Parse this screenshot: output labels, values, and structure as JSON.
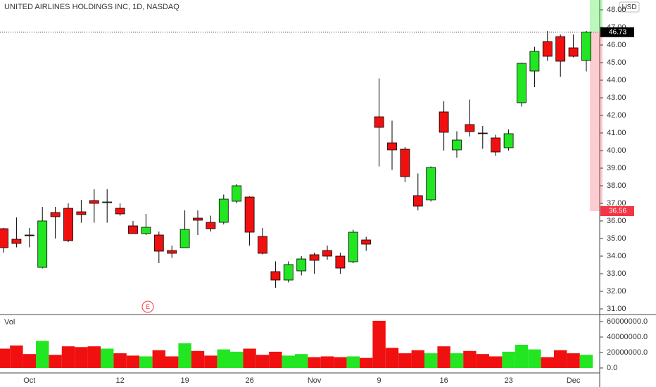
{
  "chart_data": [
    {
      "type": "candlestick",
      "title": "UNITED AIRLINES HOLDINGS INC, 1D, NASDAQ",
      "currency": "USD",
      "earnings": "E",
      "categories": [
        null,
        null,
        "Oct",
        null,
        null,
        null,
        null,
        null,
        null,
        "12",
        null,
        null,
        null,
        null,
        "19",
        null,
        null,
        null,
        null,
        "26",
        null,
        null,
        null,
        null,
        "Nov",
        null,
        null,
        null,
        null,
        "9",
        null,
        null,
        null,
        null,
        "16",
        null,
        null,
        null,
        null,
        "23",
        null,
        null,
        null,
        null,
        "Dec",
        null
      ],
      "open": [
        35.56,
        34.96,
        35.2,
        33.36,
        36.48,
        36.72,
        36.52,
        37.16,
        37.04,
        36.72,
        35.72,
        35.28,
        35.2,
        34.32,
        34.48,
        36.16,
        35.92,
        35.92,
        37.12,
        37.36,
        35.12,
        33.12,
        32.64,
        33.16,
        34.08,
        34.32,
        34.0,
        33.68,
        34.92,
        41.92,
        40.44,
        40.08,
        37.44,
        37.2,
        42.2,
        40.04,
        41.48,
        41.0,
        40.72,
        40.16,
        42.72,
        44.52,
        46.2,
        46.48,
        45.84,
        45.12
      ],
      "high": [
        35.6,
        36.2,
        35.6,
        36.8,
        36.8,
        37.0,
        37.2,
        37.8,
        37.8,
        37.0,
        36.0,
        36.4,
        35.4,
        34.6,
        36.6,
        36.6,
        36.3,
        37.5,
        38.1,
        37.4,
        35.6,
        33.7,
        33.7,
        34.0,
        34.2,
        34.6,
        34.2,
        35.5,
        35.1,
        44.1,
        41.7,
        40.2,
        38.7,
        39.1,
        42.8,
        41.1,
        42.9,
        41.4,
        40.9,
        41.2,
        45.0,
        45.9,
        46.8,
        46.6,
        46.6,
        46.8
      ],
      "low": [
        34.2,
        34.5,
        34.5,
        33.3,
        35.0,
        34.8,
        35.9,
        35.9,
        35.9,
        36.3,
        35.3,
        35.2,
        33.6,
        33.9,
        34.5,
        35.2,
        35.4,
        35.8,
        37.0,
        34.6,
        34.1,
        32.2,
        32.5,
        32.9,
        33.0,
        33.8,
        33.0,
        33.6,
        34.3,
        39.1,
        38.9,
        38.2,
        36.6,
        37.1,
        40.0,
        39.6,
        40.8,
        40.1,
        39.7,
        40.0,
        42.5,
        43.6,
        45.1,
        44.2,
        45.3,
        44.5
      ],
      "close": [
        34.48,
        34.72,
        35.16,
        36.0,
        36.24,
        34.88,
        36.36,
        37.0,
        37.08,
        36.4,
        35.28,
        35.64,
        34.28,
        34.16,
        35.52,
        36.04,
        35.56,
        37.24,
        38.0,
        35.36,
        34.16,
        32.64,
        33.52,
        33.84,
        33.76,
        34.0,
        33.32,
        35.36,
        34.68,
        41.32,
        40.04,
        38.52,
        36.84,
        39.04,
        41.04,
        40.6,
        41.08,
        40.96,
        39.92,
        40.96,
        44.96,
        45.64,
        45.36,
        45.08,
        45.36,
        46.73
      ],
      "up_color": "#22e622",
      "down_color": "#f01010",
      "last_price": 46.73,
      "marker_price": 36.56,
      "marker_color": "#f23645",
      "ylim": [
        30.68,
        48.56
      ],
      "yticks": [
        {
          "value": 31,
          "label": "31.00"
        },
        {
          "value": 32,
          "label": "32.00"
        },
        {
          "value": 33,
          "label": "33.00"
        },
        {
          "value": 34,
          "label": "34.00"
        },
        {
          "value": 35,
          "label": "35.00"
        },
        {
          "value": 36,
          "label": "36.00"
        },
        {
          "value": 37,
          "label": "37.00"
        },
        {
          "value": 38,
          "label": "38.00"
        },
        {
          "value": 39,
          "label": "39.00"
        },
        {
          "value": 40,
          "label": "40.00"
        },
        {
          "value": 41,
          "label": "41.00"
        },
        {
          "value": 42,
          "label": "42.00"
        },
        {
          "value": 43,
          "label": "43.00"
        },
        {
          "value": 44,
          "label": "44.00"
        },
        {
          "value": 45,
          "label": "45.00"
        },
        {
          "value": 46,
          "label": "46.00"
        },
        {
          "value": 47,
          "label": "47.00"
        },
        {
          "value": 48,
          "label": "48.00"
        }
      ]
    },
    {
      "type": "bar",
      "title": "Vol",
      "values": [
        25000000,
        29000000,
        18000000,
        35000000,
        17000000,
        28000000,
        27000000,
        28000000,
        25000000,
        19000000,
        16000000,
        15000000,
        23000000,
        15000000,
        32000000,
        22000000,
        16000000,
        24000000,
        21000000,
        25000000,
        17000000,
        21000000,
        16000000,
        18000000,
        14000000,
        15000000,
        14000000,
        15000000,
        13000000,
        61000000,
        26000000,
        19000000,
        23000000,
        19000000,
        28000000,
        19000000,
        22000000,
        18000000,
        15000000,
        21000000,
        30000000,
        24000000,
        14000000,
        23000000,
        19000000,
        17000000
      ],
      "ylim": [
        -6400000,
        69100000
      ],
      "yticks": [
        {
          "value": 0,
          "label": "0.0"
        },
        {
          "value": 20000000,
          "label": "20000000.0"
        },
        {
          "value": 40000000,
          "label": "40000000.0"
        },
        {
          "value": 60000000,
          "label": "60000000.0"
        }
      ]
    }
  ]
}
